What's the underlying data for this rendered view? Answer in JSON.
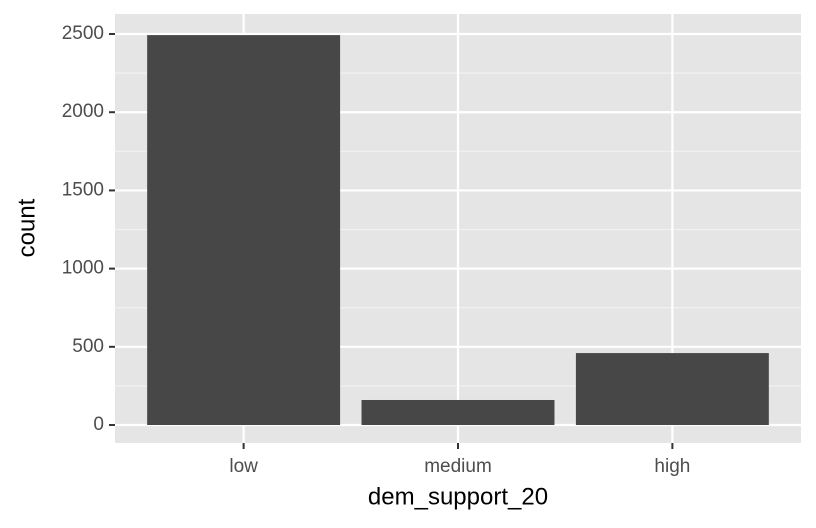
{
  "chart_data": {
    "type": "bar",
    "x_label": "dem_support_20",
    "y_label": "count",
    "categories": [
      "low",
      "medium",
      "high"
    ],
    "values": [
      2493,
      160,
      460
    ],
    "color": "#474747",
    "ylim": [
      -115,
      2628
    ],
    "yticks": [
      0,
      500,
      1000,
      1500,
      2000,
      2500
    ],
    "grid": true,
    "minor_grid": true
  }
}
